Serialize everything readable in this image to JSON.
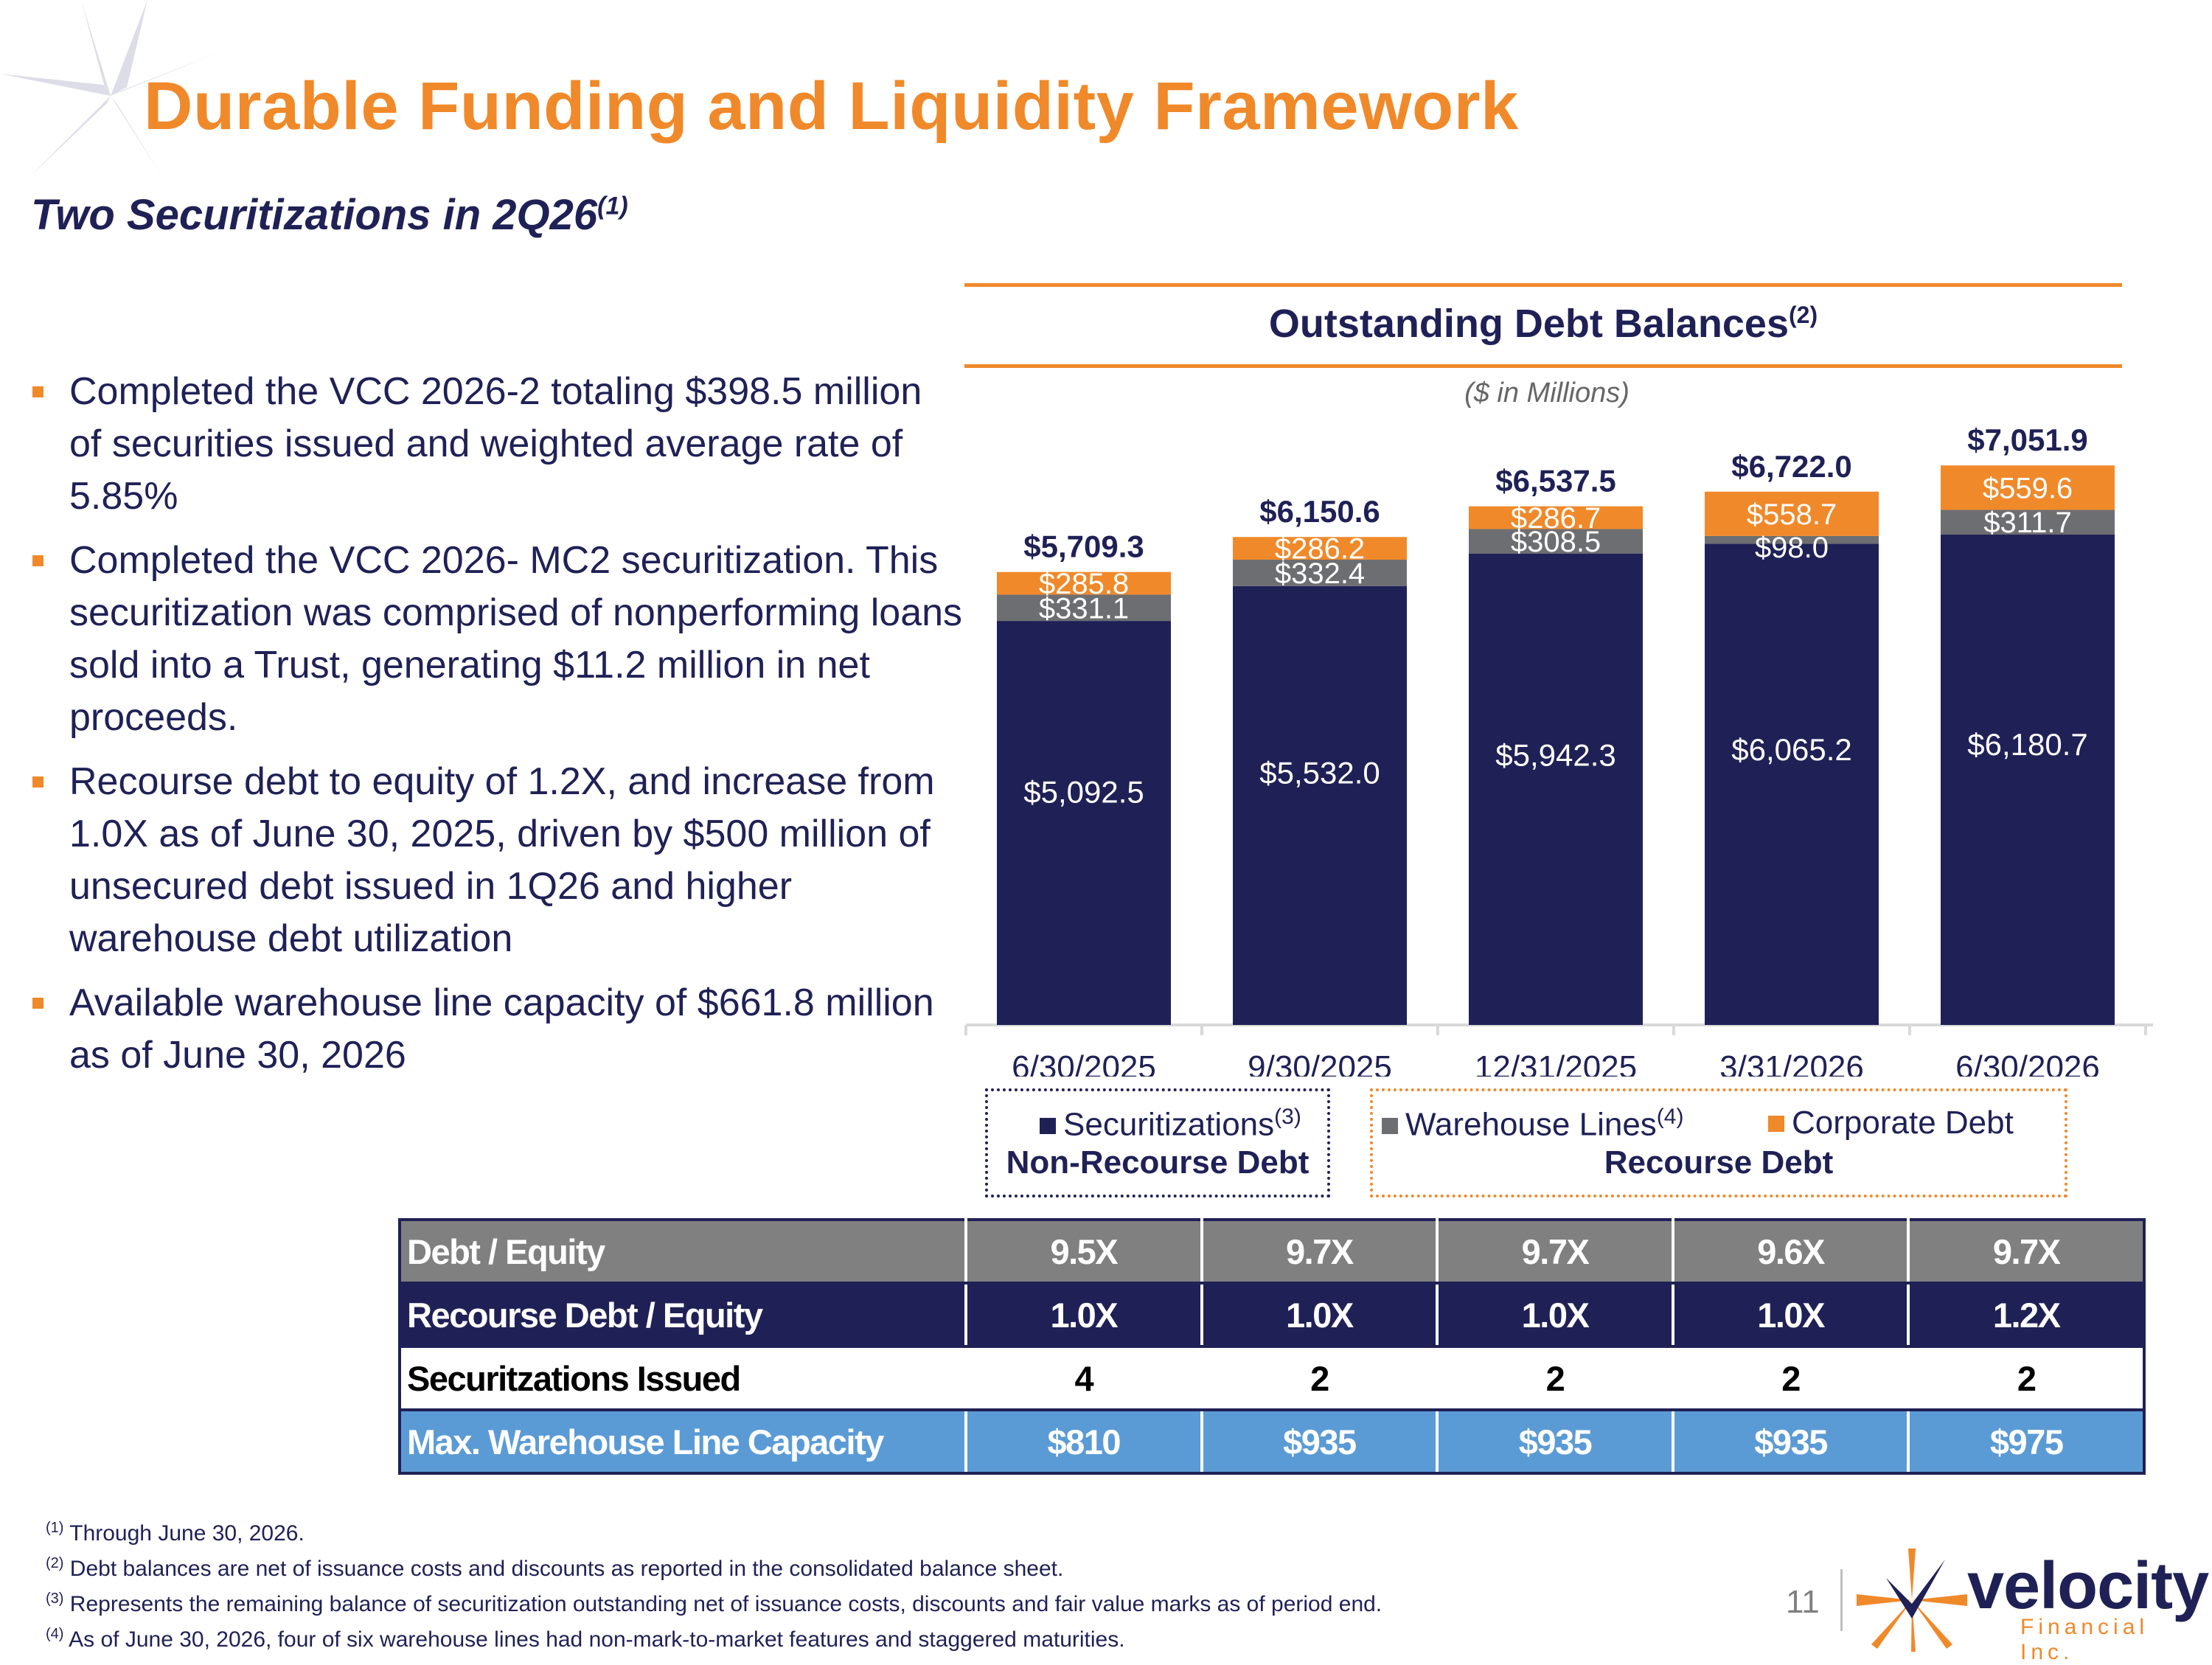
{
  "header": {
    "title": "Durable Funding and Liquidity Framework",
    "subtitle": "Two Securitizations in 2Q26",
    "subtitle_note": "(1)"
  },
  "bullets": [
    "Completed the VCC 2026-2 totaling $398.5 million of securities issued and weighted average rate of 5.85%",
    "Completed the VCC 2026- MC2 securitization. This securitization was comprised of nonperforming loans sold into a Trust, generating $11.2 million in net proceeds.",
    "Recourse debt to equity of 1.2X, and increase from 1.0X as of June 30, 2025, driven by $500 million of unsecured debt issued in 1Q26 and higher warehouse debt utilization",
    "Available warehouse line capacity of $661.8 million as of June 30, 2026"
  ],
  "chart_data": {
    "type": "bar",
    "stacked": true,
    "title": "Outstanding Debt Balances",
    "title_note": "(2)",
    "subtitle": "($ in Millions)",
    "categories": [
      "6/30/2025",
      "9/30/2025",
      "12/31/2025",
      "3/31/2026",
      "6/30/2026"
    ],
    "series": [
      {
        "name": "Securitizations",
        "color": "#1f2156",
        "values": [
          5092.5,
          5532.0,
          5942.3,
          6065.2,
          6180.7
        ],
        "labels": [
          "$5,092.5",
          "$5,532.0",
          "$5,942.3",
          "$6,065.2",
          "$6,180.7"
        ]
      },
      {
        "name": "Warehouse Lines",
        "color": "#6d6e71",
        "values": [
          331.1,
          332.4,
          308.5,
          98.0,
          311.7
        ],
        "labels": [
          "$331.1",
          "$332.4",
          "$308.5",
          "$98.0",
          "$311.7"
        ]
      },
      {
        "name": "Corporate Debt",
        "color": "#f0892a",
        "values": [
          285.8,
          286.2,
          286.7,
          558.7,
          559.6
        ],
        "labels": [
          "$285.8",
          "$286.2",
          "$286.7",
          "$558.7",
          "$559.6"
        ]
      }
    ],
    "totals": [
      "$5,709.3",
      "$6,150.6",
      "$6,537.5",
      "$6,722.0",
      "$7,051.9"
    ],
    "ylim": [
      0,
      7900
    ],
    "grid": false,
    "legend": {
      "items": [
        {
          "label": "Securitizations",
          "note": "(3)",
          "color": "#1f2156"
        },
        {
          "label": "Warehouse Lines",
          "note": "(4)",
          "color": "#6d6e71"
        },
        {
          "label": "Corporate Debt",
          "note": "",
          "color": "#f0892a"
        }
      ],
      "groups": {
        "non_recourse": "Non-Recourse Debt",
        "recourse": "Recourse Debt"
      }
    }
  },
  "table": {
    "rows": [
      {
        "label": "Debt / Equity",
        "values": [
          "9.5X",
          "9.7X",
          "9.7X",
          "9.6X",
          "9.7X"
        ]
      },
      {
        "label": "Recourse Debt / Equity",
        "values": [
          "1.0X",
          "1.0X",
          "1.0X",
          "1.0X",
          "1.2X"
        ]
      },
      {
        "label": "Securitzations Issued",
        "values": [
          "4",
          "2",
          "2",
          "2",
          "2"
        ]
      },
      {
        "label": "Max. Warehouse Line Capacity",
        "values": [
          "$810",
          "$935",
          "$935",
          "$935",
          "$975"
        ]
      }
    ]
  },
  "footnotes": [
    {
      "mark": "(1)",
      "text": "Through June 30, 2026."
    },
    {
      "mark": "(2)",
      "text": "Debt balances are net of issuance costs and discounts as reported in the consolidated balance sheet."
    },
    {
      "mark": "(3)",
      "text": "Represents the remaining balance of securitization outstanding net of issuance costs, discounts and fair value marks as of period end."
    },
    {
      "mark": "(4)",
      "text": "As of June 30, 2026, four of six warehouse lines had non-mark-to-market features and staggered maturities."
    }
  ],
  "footer": {
    "page_number": "11",
    "logo_name": "velocity",
    "logo_sub": "Financial Inc."
  },
  "colors": {
    "accent_orange": "#f0892a",
    "navy": "#1f2156",
    "gray": "#6d6e71",
    "table_blue": "#5b9bd5"
  }
}
